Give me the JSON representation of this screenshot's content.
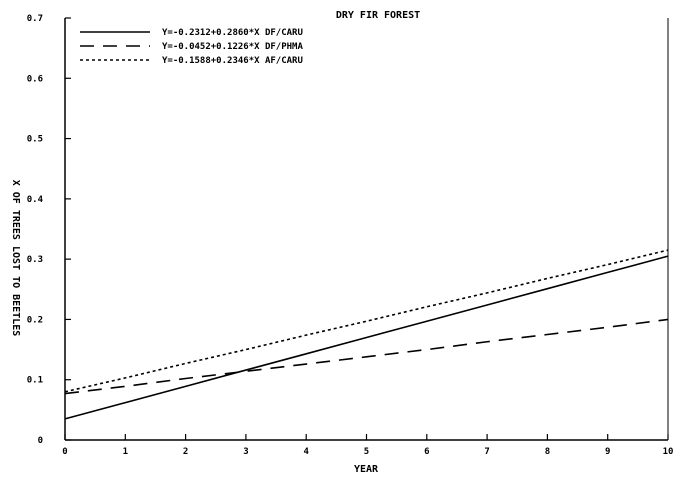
{
  "chart_data": {
    "type": "line",
    "title": "DRY FIR FOREST",
    "xlabel": "YEAR",
    "ylabel": "X OF TREES LOST TO BEETLES",
    "xlim": [
      0,
      10
    ],
    "ylim": [
      0,
      0.7
    ],
    "xticks": [
      "0",
      "1",
      "2",
      "3",
      "4",
      "5",
      "6",
      "7",
      "8",
      "9",
      "10"
    ],
    "yticks": [
      "0",
      "0.1",
      "0.2",
      "0.3",
      "0.4",
      "0.5",
      "0.6",
      "0.7"
    ],
    "grid": false,
    "legend_position": "top-left",
    "x": [
      0,
      1,
      2,
      3,
      4,
      5,
      6,
      7,
      8,
      9,
      10
    ],
    "series": [
      {
        "name": "Y=-0.2312+0.2860*X DF/CARU",
        "line_style": "solid",
        "values": [
          0.035,
          0.062,
          0.089,
          0.116,
          0.143,
          0.17,
          0.197,
          0.224,
          0.251,
          0.278,
          0.305
        ]
      },
      {
        "name": "Y=-0.0452+0.1226*X DF/PHMA",
        "line_style": "dashed",
        "values": [
          0.077,
          0.089,
          0.102,
          0.114,
          0.126,
          0.138,
          0.15,
          0.163,
          0.175,
          0.187,
          0.2
        ]
      },
      {
        "name": "Y=-0.1588+0.2346*X AF/CARU",
        "line_style": "dotted",
        "values": [
          0.08,
          0.103,
          0.127,
          0.15,
          0.174,
          0.197,
          0.221,
          0.244,
          0.268,
          0.291,
          0.315
        ]
      }
    ]
  }
}
